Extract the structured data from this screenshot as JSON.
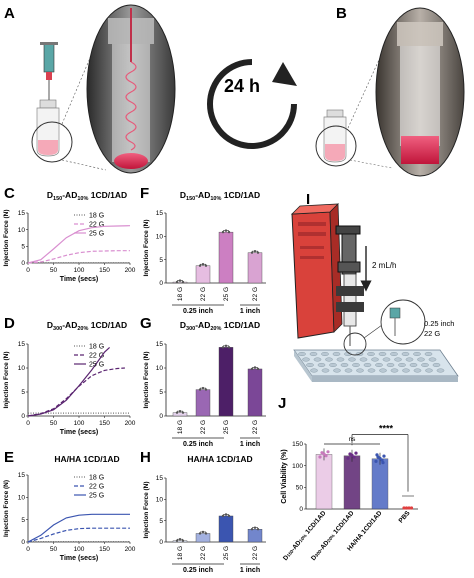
{
  "panels": {
    "A": "A",
    "B": "B",
    "C": "C",
    "D": "D",
    "E": "E",
    "F": "F",
    "G": "G",
    "H": "H",
    "I": "I",
    "J": "J"
  },
  "arrow_label": "24 h",
  "gauge_labels": {
    "g18": "18 G",
    "g22": "22 G",
    "g25": "25 G"
  },
  "line_common": {
    "xlabel": "Time (secs)",
    "ylabel": "Injection Force (N)",
    "xticks": [
      "0",
      "50",
      "100",
      "150",
      "200"
    ],
    "yticks": [
      "0",
      "5",
      "10",
      "15"
    ]
  },
  "bar_common": {
    "ylabel": "Injection Force (N)",
    "yticks": [
      "0",
      "5",
      "10",
      "15"
    ],
    "group_short": "0.25 inch",
    "group_long": "1 inch"
  },
  "titles": {
    "C": {
      "a": "D",
      "b": "150",
      "c": "-AD",
      "d": "10%",
      "e": " 1CD/1AD"
    },
    "D": {
      "a": "D",
      "b": "300",
      "c": "-AD",
      "d": "20%",
      "e": " 1CD/1AD"
    },
    "E": "HA/HA 1CD/1AD",
    "F": {
      "a": "D",
      "b": "150",
      "c": "-AD",
      "d": "10%",
      "e": " 1CD/1AD"
    },
    "G": {
      "a": "D",
      "b": "300",
      "c": "-AD",
      "d": "20%",
      "e": " 1CD/1AD"
    },
    "H": "HA/HA 1CD/1AD"
  },
  "panel_I": {
    "flow": "2 mL/h",
    "needle_len": "0.25 inch",
    "needle_gauge": "22 G"
  },
  "panel_J": {
    "ylabel": "Cell Viability (%)",
    "yticks": [
      "0",
      "50",
      "100",
      "150"
    ],
    "ns": "ns",
    "stars": "****",
    "xlabels": [
      {
        "a": "D",
        "b": "150",
        "c": "-AD",
        "d": "10%",
        "e": " 1CD/1AD"
      },
      {
        "a": "D",
        "b": "300",
        "c": "-AD",
        "d": "20%",
        "e": " 1CD/1AD"
      },
      {
        "a": "HA/HA 1CD/1AD",
        "b": "",
        "c": "",
        "d": "",
        "e": ""
      },
      {
        "a": "PBS",
        "b": "",
        "c": "",
        "d": "",
        "e": ""
      }
    ]
  },
  "chart_data": [
    {
      "id": "C",
      "type": "line",
      "title": "D150-AD10% 1CD/1AD",
      "xlabel": "Time (secs)",
      "ylabel": "Injection Force (N)",
      "xlim": [
        0,
        200
      ],
      "ylim": [
        0,
        15
      ],
      "color": "#d98fd0",
      "series": [
        {
          "name": "18 G",
          "style": "dotted",
          "x": [
            0,
            50,
            100,
            150,
            200
          ],
          "y": [
            0.1,
            0.1,
            0.1,
            0.1,
            0.1
          ]
        },
        {
          "name": "22 G",
          "style": "dashed",
          "x": [
            0,
            25,
            50,
            75,
            100,
            125,
            150,
            175,
            200
          ],
          "y": [
            0,
            0.3,
            1.2,
            2.3,
            3.1,
            3.5,
            3.6,
            3.7,
            3.7
          ]
        },
        {
          "name": "25 G",
          "style": "solid",
          "x": [
            0,
            25,
            50,
            75,
            100,
            125,
            150,
            175,
            200
          ],
          "y": [
            0,
            1.0,
            4.2,
            7.6,
            9.7,
            10.6,
            11.0,
            11.1,
            11.2
          ]
        }
      ]
    },
    {
      "id": "D",
      "type": "line",
      "title": "D300-AD20% 1CD/1AD",
      "xlabel": "Time (secs)",
      "ylabel": "Injection Force (N)",
      "xlim": [
        0,
        200
      ],
      "ylim": [
        0,
        15
      ],
      "color": "#5a2470",
      "series": [
        {
          "name": "18 G",
          "style": "dotted",
          "x": [
            0,
            50,
            100,
            150,
            200
          ],
          "y": [
            0.6,
            0.6,
            0.6,
            0.6,
            0.6
          ]
        },
        {
          "name": "22 G",
          "style": "dashed",
          "x": [
            0,
            25,
            50,
            75,
            100,
            125,
            150,
            175,
            190
          ],
          "y": [
            0,
            0.5,
            1.5,
            3.6,
            6.2,
            8.4,
            9.5,
            9.9,
            10.0
          ]
        },
        {
          "name": "25 G",
          "style": "solid",
          "x": [
            0,
            25,
            50,
            75,
            100,
            125,
            150,
            160
          ],
          "y": [
            0,
            0.4,
            1.3,
            3.3,
            6.3,
            9.6,
            13.3,
            14.3
          ]
        }
      ]
    },
    {
      "id": "E",
      "type": "line",
      "title": "HA/HA 1CD/1AD",
      "xlabel": "Time (secs)",
      "ylabel": "Injection Force (N)",
      "xlim": [
        0,
        200
      ],
      "ylim": [
        0,
        15
      ],
      "color": "#3b55b0",
      "series": [
        {
          "name": "18 G",
          "style": "dotted",
          "x": [
            0,
            50,
            100,
            150,
            200
          ],
          "y": [
            0.1,
            0.1,
            0.1,
            0.1,
            0.1
          ]
        },
        {
          "name": "22 G",
          "style": "dashed",
          "x": [
            0,
            25,
            50,
            75,
            100,
            125,
            150,
            175,
            200
          ],
          "y": [
            0,
            0.8,
            1.8,
            2.6,
            3.0,
            3.1,
            3.1,
            3.1,
            3.1
          ]
        },
        {
          "name": "25 G",
          "style": "solid",
          "x": [
            0,
            25,
            50,
            75,
            100,
            125,
            150,
            175,
            200
          ],
          "y": [
            0,
            1.5,
            3.8,
            5.4,
            6.0,
            6.2,
            6.2,
            6.2,
            6.2
          ]
        }
      ]
    },
    {
      "id": "F",
      "type": "bar",
      "title": "D150-AD10% 1CD/1AD",
      "ylabel": "Injection Force (N)",
      "ylim": [
        0,
        15
      ],
      "categories": [
        "18 G",
        "22 G",
        "25 G",
        "22 G"
      ],
      "values": [
        0.2,
        3.7,
        10.9,
        6.5
      ],
      "colors": [
        "#f3dbf0",
        "#e6bde1",
        "#cc7fc2",
        "#d9a3d2"
      ]
    },
    {
      "id": "G",
      "type": "bar",
      "title": "D300-AD20% 1CD/1AD",
      "ylabel": "Injection Force (N)",
      "ylim": [
        0,
        15
      ],
      "categories": [
        "18 G",
        "22 G",
        "25 G",
        "22 G"
      ],
      "values": [
        0.7,
        5.5,
        14.3,
        9.8
      ],
      "colors": [
        "#e4d2ec",
        "#9a67b3",
        "#4d1f67",
        "#7b4797"
      ]
    },
    {
      "id": "H",
      "type": "bar",
      "title": "HA/HA 1CD/1AD",
      "ylabel": "Injection Force (N)",
      "ylim": [
        0,
        15
      ],
      "categories": [
        "18 G",
        "22 G",
        "25 G",
        "22 G"
      ],
      "values": [
        0.3,
        2.0,
        6.1,
        3.0
      ],
      "colors": [
        "#dfe4f5",
        "#a3b1e0",
        "#3b55b0",
        "#7286cc"
      ]
    },
    {
      "id": "J",
      "type": "bar",
      "ylabel": "Cell Viability (%)",
      "ylim": [
        0,
        150
      ],
      "categories": [
        "D150-AD10% 1CD/1AD",
        "D300-AD20% 1CD/1AD",
        "HA/HA 1CD/1AD",
        "PBS"
      ],
      "values": [
        126,
        123,
        116,
        0
      ],
      "colors": [
        "#e8c4e3",
        "#5a2470",
        "#4a64c0",
        "#e04040"
      ]
    }
  ]
}
